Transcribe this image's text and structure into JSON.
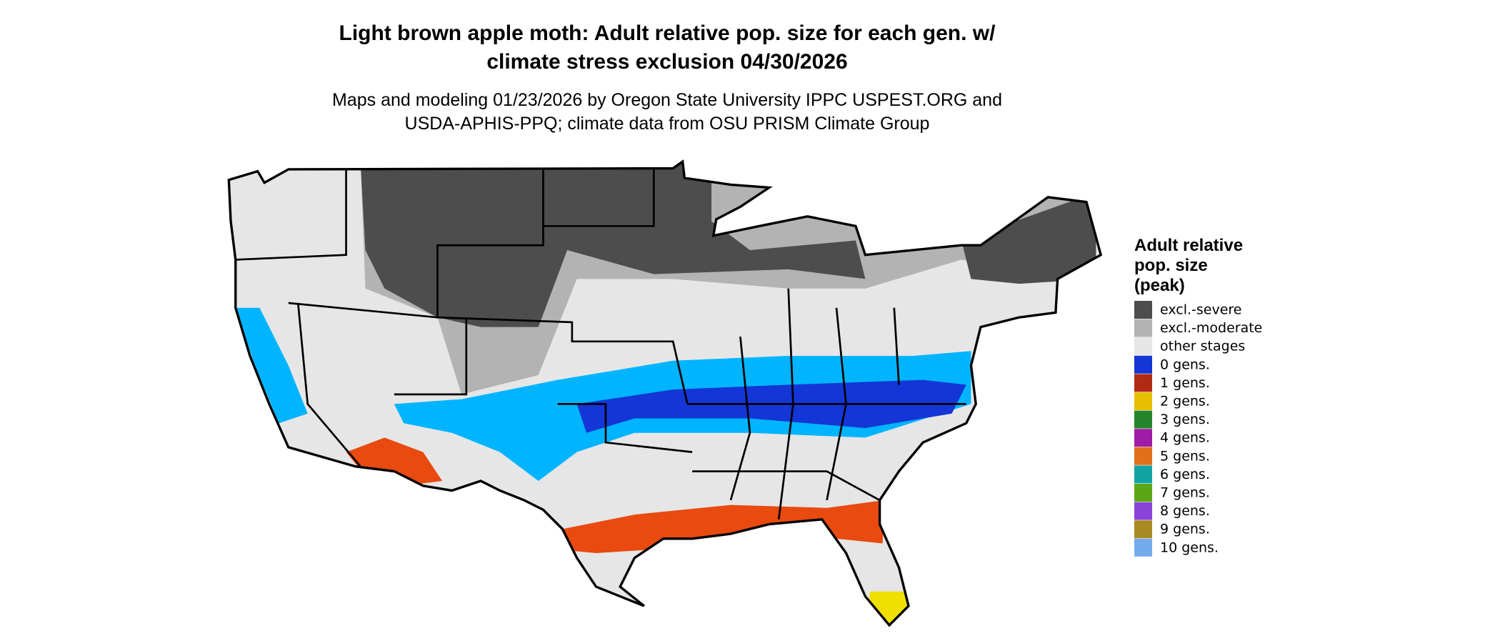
{
  "title": {
    "line1": "Light brown apple moth: Adult relative pop. size for each gen. w/",
    "line2": "climate stress exclusion 04/30/2026"
  },
  "subtitle": {
    "line1": "Maps and modeling 01/23/2026 by Oregon State University IPPC USPEST.ORG and",
    "line2": "USDA-APHIS-PPQ; climate data from OSU PRISM Climate Group"
  },
  "legend": {
    "title": [
      "Adult relative",
      "pop. size",
      "(peak)"
    ],
    "items": [
      {
        "label": "excl.-severe",
        "color": "#4d4d4d"
      },
      {
        "label": "excl.-moderate",
        "color": "#b3b3b3"
      },
      {
        "label": "other stages",
        "color": "#e6e6e6"
      },
      {
        "label": "0 gens.",
        "color": "#1436d6"
      },
      {
        "label": "1 gens.",
        "color": "#b22a14"
      },
      {
        "label": "2 gens.",
        "color": "#e6c000"
      },
      {
        "label": "3 gens.",
        "color": "#23852a"
      },
      {
        "label": "4 gens.",
        "color": "#a01ba6"
      },
      {
        "label": "5 gens.",
        "color": "#e0701c"
      },
      {
        "label": "6 gens.",
        "color": "#12a4a4"
      },
      {
        "label": "7 gens.",
        "color": "#5aa614"
      },
      {
        "label": "8 gens.",
        "color": "#8a44d8"
      },
      {
        "label": "9 gens.",
        "color": "#a88a22"
      },
      {
        "label": "10 gens.",
        "color": "#74aaee"
      }
    ]
  }
}
